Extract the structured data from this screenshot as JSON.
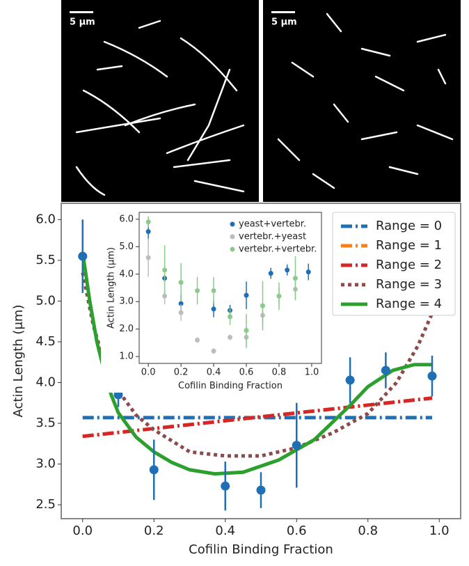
{
  "images": [
    {
      "scale_label": "5 μm"
    },
    {
      "scale_label": "5 μm"
    }
  ],
  "chart_data": [
    {
      "type": "line",
      "xlabel": "Cofilin Binding Fraction",
      "ylabel": "Actin Length (μm)",
      "xlim": [
        -0.06,
        1.06
      ],
      "ylim": [
        2.33,
        6.2
      ],
      "xticks": [
        {
          "value": 0,
          "label": "0.0"
        },
        0.2,
        0.4,
        0.6,
        0.8,
        {
          "value": 1,
          "label": "1.0"
        }
      ],
      "yticks": [
        {
          "value": 6,
          "label": "6.0"
        },
        5.5,
        {
          "value": 5,
          "label": "5.0"
        },
        4.5,
        {
          "value": 4,
          "label": "4.0"
        },
        3.5,
        {
          "value": 3,
          "label": "3.0"
        },
        2.5
      ],
      "legend": "upper right",
      "series": [
        {
          "name": "Range = 0",
          "color": "#1f6fb4",
          "linestyle": "dashdot",
          "x": [
            0,
            0.98
          ],
          "values": [
            3.57,
            3.57
          ]
        },
        {
          "name": "Range = 1",
          "color": "#ff7f0e",
          "linestyle": "dashdot",
          "x": [
            0,
            0.98
          ],
          "values": [
            3.34,
            3.81
          ]
        },
        {
          "name": "Range = 2",
          "color": "#d62728",
          "linestyle": "dashdot",
          "x": [
            0,
            0.98
          ],
          "values": [
            3.34,
            3.81
          ]
        },
        {
          "name": "Range = 3",
          "color": "#8c4a4a",
          "linestyle": "dotted",
          "x": [
            0,
            0.03,
            0.06,
            0.1,
            0.15,
            0.2,
            0.3,
            0.4,
            0.5,
            0.6,
            0.7,
            0.8,
            0.88,
            0.94,
            0.98
          ],
          "values": [
            5.35,
            4.7,
            4.25,
            3.9,
            3.6,
            3.42,
            3.15,
            3.1,
            3.1,
            3.2,
            3.38,
            3.62,
            4.0,
            4.45,
            4.85
          ]
        },
        {
          "name": "Range = 4",
          "color": "#2ca02c",
          "linestyle": "solid",
          "x": [
            0,
            0.02,
            0.04,
            0.06,
            0.08,
            0.1,
            0.15,
            0.2,
            0.25,
            0.3,
            0.37,
            0.45,
            0.55,
            0.65,
            0.75,
            0.8,
            0.87,
            0.93,
            0.98
          ],
          "values": [
            5.6,
            5.0,
            4.5,
            4.15,
            3.85,
            3.63,
            3.33,
            3.15,
            3.02,
            2.93,
            2.88,
            2.9,
            3.05,
            3.3,
            3.72,
            3.95,
            4.15,
            4.22,
            4.22
          ]
        }
      ],
      "points": {
        "color": "#1f6fb4",
        "x": [
          0,
          0.1,
          0.2,
          0.4,
          0.5,
          0.6,
          0.75,
          0.85,
          0.98
        ],
        "values": [
          5.55,
          3.85,
          2.93,
          2.73,
          2.68,
          3.23,
          4.03,
          4.15,
          4.08
        ],
        "errors": [
          0.45,
          0.15,
          0.37,
          0.3,
          0.22,
          0.52,
          0.28,
          0.22,
          0.25
        ]
      }
    },
    {
      "type": "scatter",
      "xlabel": "Cofilin Binding Fraction",
      "ylabel": "Actin Length (μm)",
      "xlim": [
        -0.056,
        1.06
      ],
      "ylim": [
        0.75,
        6.25
      ],
      "xticks": [
        {
          "value": 0,
          "label": "0.0"
        },
        0.2,
        0.4,
        0.6,
        0.8,
        {
          "value": 1,
          "label": "1.0"
        }
      ],
      "yticks": [
        {
          "value": 1,
          "label": "1.0"
        },
        {
          "value": 2,
          "label": "2.0"
        },
        {
          "value": 3,
          "label": "3.0"
        },
        {
          "value": 4,
          "label": "4.0"
        },
        {
          "value": 5,
          "label": "5.0"
        },
        {
          "value": 6,
          "label": "6.0"
        }
      ],
      "legend": "upper right",
      "series": [
        {
          "name": "yeast+vertebr.",
          "color": "#1f6fb4",
          "x": [
            0,
            0.1,
            0.2,
            0.4,
            0.5,
            0.6,
            0.75,
            0.85,
            0.98
          ],
          "values": [
            5.55,
            3.85,
            2.93,
            2.73,
            2.68,
            3.23,
            4.03,
            4.15,
            4.08
          ],
          "errors": [
            0.3,
            0.12,
            0.3,
            0.3,
            0.2,
            0.5,
            0.2,
            0.2,
            0.3
          ]
        },
        {
          "name": "vertebr.+yeast",
          "color": "#bdbdbd",
          "x": [
            0,
            0.1,
            0.2,
            0.3,
            0.4,
            0.5,
            0.6,
            0.7,
            0.8,
            0.9
          ],
          "values": [
            4.6,
            3.2,
            2.6,
            1.6,
            1.2,
            1.7,
            1.7,
            2.5,
            3.2,
            3.45
          ],
          "errors": [
            0.7,
            0.3,
            0.3,
            0.1,
            0.1,
            0.1,
            0.4,
            0.4,
            0.3,
            0.4
          ]
        },
        {
          "name": "vertebr.+vertebr.",
          "color": "#8cc98c",
          "x": [
            0,
            0.1,
            0.2,
            0.3,
            0.4,
            0.5,
            0.6,
            0.7,
            0.8,
            0.9
          ],
          "values": [
            5.9,
            4.15,
            3.7,
            3.4,
            3.4,
            2.45,
            1.95,
            2.85,
            3.2,
            3.85
          ],
          "errors": [
            0.2,
            0.9,
            0.7,
            0.5,
            0.5,
            0.3,
            0.6,
            0.9,
            0.5,
            0.8
          ]
        }
      ]
    }
  ]
}
